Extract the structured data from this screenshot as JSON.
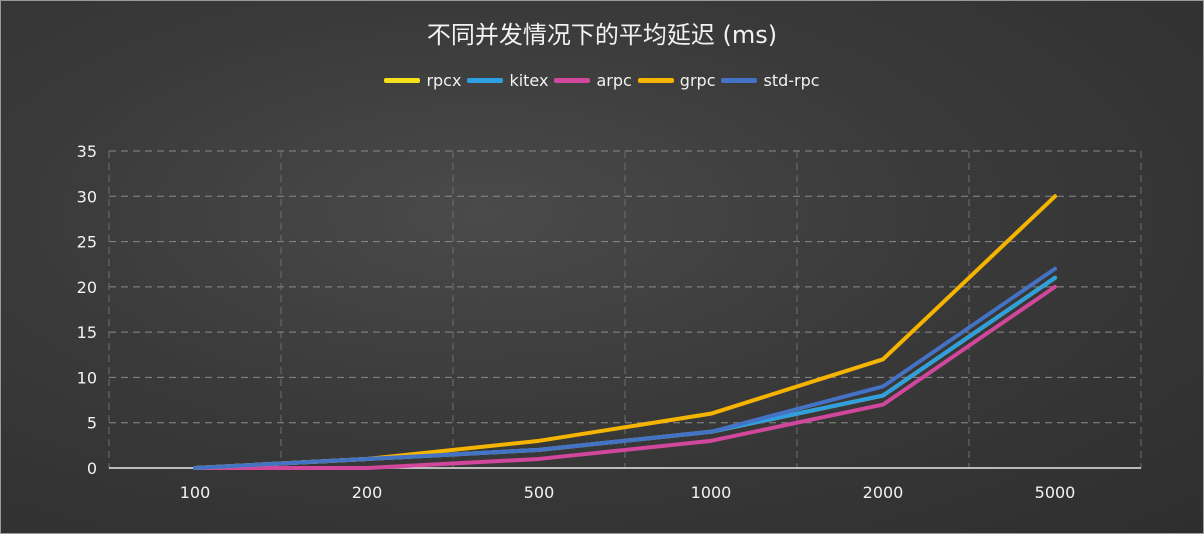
{
  "chart_data": {
    "type": "line",
    "title": "不同并发情况下的平均延迟 (ms)",
    "xlabel": "",
    "ylabel": "",
    "categories": [
      "100",
      "200",
      "500",
      "1000",
      "2000",
      "5000"
    ],
    "ylim": [
      0,
      35
    ],
    "yticks": [
      0,
      5,
      10,
      15,
      20,
      25,
      30,
      35
    ],
    "grid": true,
    "legend_position": "top",
    "series": [
      {
        "name": "rpcx",
        "color": "#f5e11a",
        "values": [
          0,
          1,
          2,
          4,
          8,
          21
        ]
      },
      {
        "name": "kitex",
        "color": "#2e9fe0",
        "values": [
          0,
          1,
          2,
          4,
          8,
          21
        ]
      },
      {
        "name": "arpc",
        "color": "#d0479b",
        "values": [
          0,
          0,
          1,
          3,
          7,
          20
        ]
      },
      {
        "name": "grpc",
        "color": "#f5b400",
        "values": [
          0,
          1,
          3,
          6,
          12,
          30
        ]
      },
      {
        "name": "std-rpc",
        "color": "#4472c4",
        "values": [
          0,
          1,
          2,
          4,
          9,
          22
        ]
      }
    ]
  }
}
